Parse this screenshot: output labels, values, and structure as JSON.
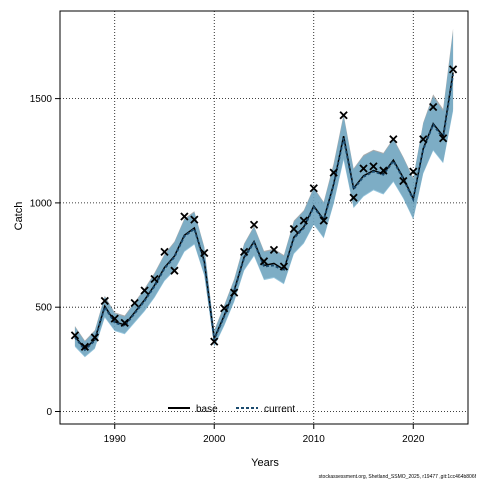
{
  "chart_data": {
    "type": "line",
    "xlabel": "Years",
    "ylabel": "Catch",
    "xlim": [
      1984.5,
      2025.5
    ],
    "ylim": [
      -60,
      1920
    ],
    "xticks": [
      1990,
      2000,
      2010,
      2020
    ],
    "yticks": [
      0,
      500,
      1000,
      1500
    ],
    "grid": true,
    "legend_position": "bottom-center",
    "caption": "stockassessment.org, Shetland_SSMO_2025, r19477 ,git:1cc464b806f",
    "x": [
      1986,
      1987,
      1988,
      1989,
      1990,
      1991,
      1992,
      1993,
      1994,
      1995,
      1996,
      1997,
      1998,
      1999,
      2000,
      2001,
      2002,
      2003,
      2004,
      2005,
      2006,
      2007,
      2008,
      2009,
      2010,
      2011,
      2012,
      2013,
      2014,
      2015,
      2016,
      2017,
      2018,
      2019,
      2020,
      2021,
      2022,
      2023,
      2024
    ],
    "observed": [
      365,
      310,
      355,
      530,
      445,
      425,
      520,
      580,
      635,
      765,
      675,
      935,
      920,
      760,
      335,
      495,
      570,
      765,
      895,
      720,
      775,
      695,
      875,
      915,
      1070,
      915,
      1145,
      1420,
      1025,
      1165,
      1175,
      1155,
      1305,
      1105,
      1150,
      1305,
      1460,
      1310,
      1640
    ],
    "series": [
      {
        "name": "base",
        "color": "#000000",
        "band_color": "#808080",
        "estimate": [
          360,
          300,
          345,
          505,
          430,
          415,
          475,
          535,
          605,
          690,
          745,
          845,
          880,
          720,
          350,
          460,
          580,
          740,
          815,
          700,
          710,
          680,
          835,
          885,
          985,
          920,
          1090,
          1320,
          1070,
          1130,
          1155,
          1140,
          1205,
          1120,
          1020,
          1260,
          1380,
          1320,
          1625
        ],
        "lower": [
          315,
          265,
          305,
          455,
          390,
          375,
          430,
          485,
          550,
          630,
          680,
          770,
          805,
          655,
          315,
          415,
          530,
          680,
          750,
          635,
          645,
          615,
          760,
          810,
          900,
          835,
          1000,
          1215,
          980,
          1035,
          1065,
          1045,
          1105,
          1025,
          925,
          1145,
          1255,
          1195,
          1450
        ],
        "upper": [
          410,
          340,
          390,
          555,
          475,
          460,
          525,
          590,
          665,
          755,
          815,
          925,
          960,
          790,
          390,
          510,
          635,
          805,
          890,
          770,
          780,
          750,
          915,
          965,
          1075,
          1005,
          1190,
          1425,
          1165,
          1230,
          1255,
          1240,
          1310,
          1220,
          1120,
          1385,
          1520,
          1450,
          1835
        ]
      },
      {
        "name": "current",
        "color": "#1a4a6e",
        "band_color": "#6aaed0",
        "estimate": [
          355,
          295,
          340,
          500,
          425,
          410,
          470,
          530,
          600,
          685,
          740,
          840,
          875,
          715,
          345,
          455,
          575,
          735,
          810,
          695,
          700,
          675,
          830,
          880,
          980,
          915,
          1085,
          1310,
          1065,
          1125,
          1150,
          1135,
          1200,
          1115,
          1015,
          1255,
          1375,
          1310,
          1615
        ],
        "lower": [
          310,
          260,
          300,
          450,
          385,
          370,
          425,
          480,
          545,
          625,
          675,
          765,
          800,
          650,
          310,
          410,
          525,
          675,
          745,
          630,
          640,
          610,
          755,
          805,
          895,
          830,
          995,
          1205,
          975,
          1030,
          1060,
          1040,
          1100,
          1020,
          920,
          1140,
          1250,
          1190,
          1440
        ],
        "upper": [
          405,
          335,
          385,
          550,
          470,
          455,
          520,
          585,
          660,
          750,
          810,
          920,
          955,
          785,
          385,
          505,
          630,
          800,
          885,
          765,
          775,
          745,
          910,
          960,
          1070,
          1000,
          1180,
          1415,
          1160,
          1225,
          1250,
          1235,
          1305,
          1215,
          1115,
          1380,
          1510,
          1440,
          1820
        ]
      }
    ]
  }
}
